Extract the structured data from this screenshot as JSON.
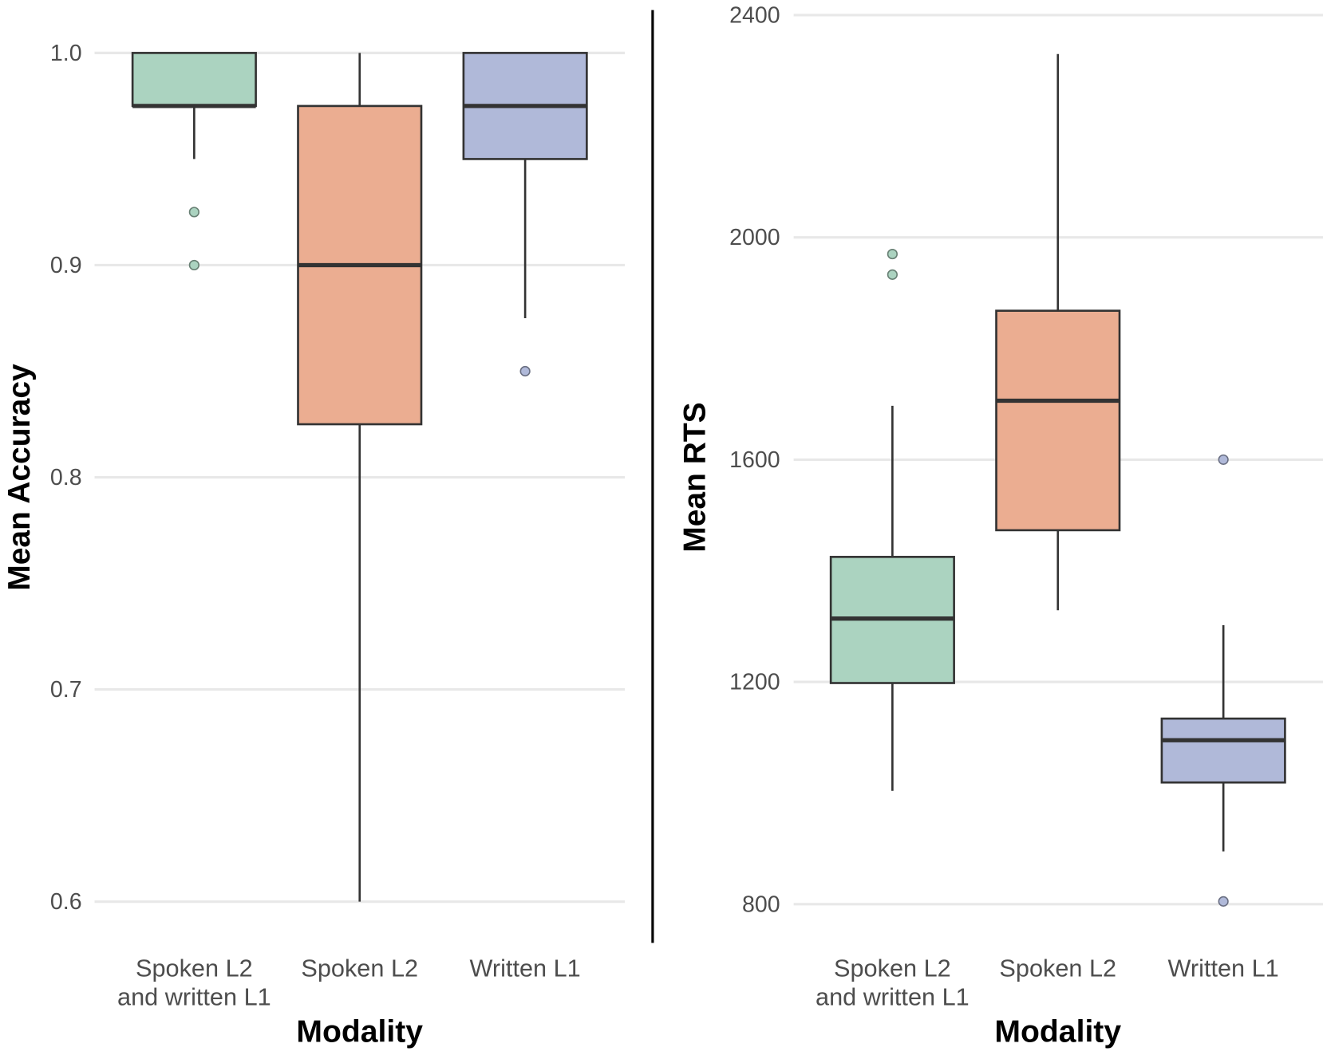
{
  "chart_data": [
    {
      "type": "boxplot",
      "xlabel": "Modality",
      "ylabel": "Mean Accuracy",
      "ylim": [
        0.6,
        1.0
      ],
      "yticks": [
        "0.6",
        "0.7",
        "0.8",
        "0.9",
        "1.0"
      ],
      "grid": true,
      "categories": [
        [
          "Spoken L2",
          "and written L1"
        ],
        [
          "Spoken L2"
        ],
        [
          "Written L1"
        ]
      ],
      "colors": [
        "#abd3c0",
        "#ebad91",
        "#b0b9d9"
      ],
      "boxes": [
        {
          "whisker_low": 0.95,
          "q1": 0.975,
          "median": 0.975,
          "q3": 1.0,
          "whisker_high": 1.0,
          "outliers": [
            0.925,
            0.9
          ]
        },
        {
          "whisker_low": 0.6,
          "q1": 0.825,
          "median": 0.9,
          "q3": 0.975,
          "whisker_high": 1.0,
          "outliers": []
        },
        {
          "whisker_low": 0.875,
          "q1": 0.95,
          "median": 0.975,
          "q3": 1.0,
          "whisker_high": 1.0,
          "outliers": [
            0.85
          ]
        }
      ]
    },
    {
      "type": "boxplot",
      "xlabel": "Modality",
      "ylabel": "Mean RTS",
      "ylim": [
        800,
        2400
      ],
      "yticks": [
        "800",
        "1200",
        "1600",
        "2000",
        "2400"
      ],
      "grid": true,
      "categories": [
        [
          "Spoken L2",
          "and written L1"
        ],
        [
          "Spoken L2"
        ],
        [
          "Written L1"
        ]
      ],
      "colors": [
        "#abd3c0",
        "#ebad91",
        "#b0b9d9"
      ],
      "boxes": [
        {
          "whisker_low": 1004,
          "q1": 1198,
          "median": 1314,
          "q3": 1425,
          "whisker_high": 1697,
          "outliers": [
            1970,
            1933
          ]
        },
        {
          "whisker_low": 1329,
          "q1": 1473,
          "median": 1706,
          "q3": 1868,
          "whisker_high": 2330,
          "outliers": []
        },
        {
          "whisker_low": 895,
          "q1": 1019,
          "median": 1095,
          "q3": 1134,
          "whisker_high": 1302,
          "outliers": [
            1600,
            805
          ]
        }
      ]
    }
  ]
}
